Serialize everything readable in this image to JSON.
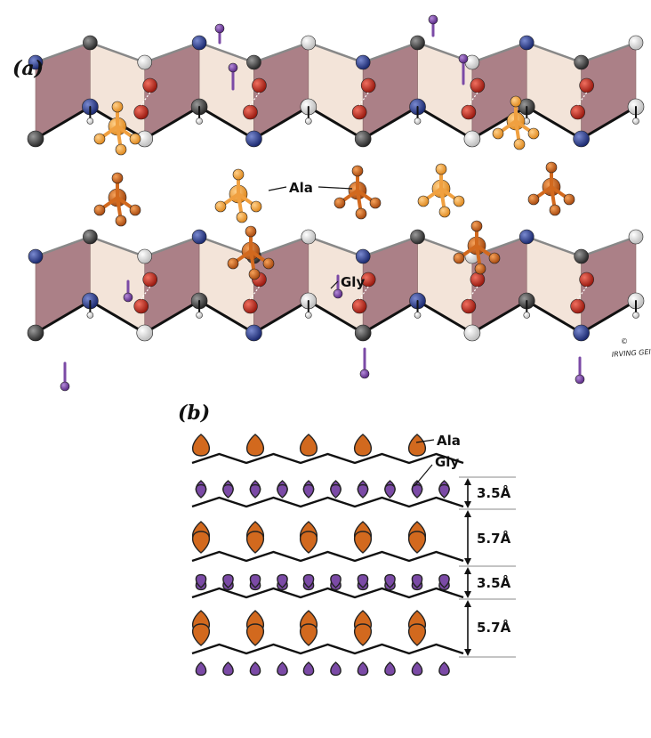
{
  "panels": {
    "a": {
      "label": "(a)",
      "labels": {
        "ala": "Ala",
        "gly": "Gly"
      }
    },
    "b": {
      "label": "(b)",
      "labels": {
        "ala": "Ala",
        "gly": "Gly"
      },
      "spacings": [
        "3.5Å",
        "5.7Å",
        "3.5Å",
        "5.7Å"
      ]
    }
  },
  "signature": {
    "copyright": "©",
    "name": "IRVING GEIS"
  },
  "colors": {
    "ala": "#d2691e",
    "ala_light": "#f0a040",
    "gly": "#7b4aa6",
    "carbon": "#3a3a3a",
    "nitrogen": "#2c3e8f",
    "oxygen": "#c0281c",
    "hydrogen": "#f2f2f2",
    "sheet_dark": "#9c6a72",
    "sheet_light": "#f1dfd2"
  }
}
